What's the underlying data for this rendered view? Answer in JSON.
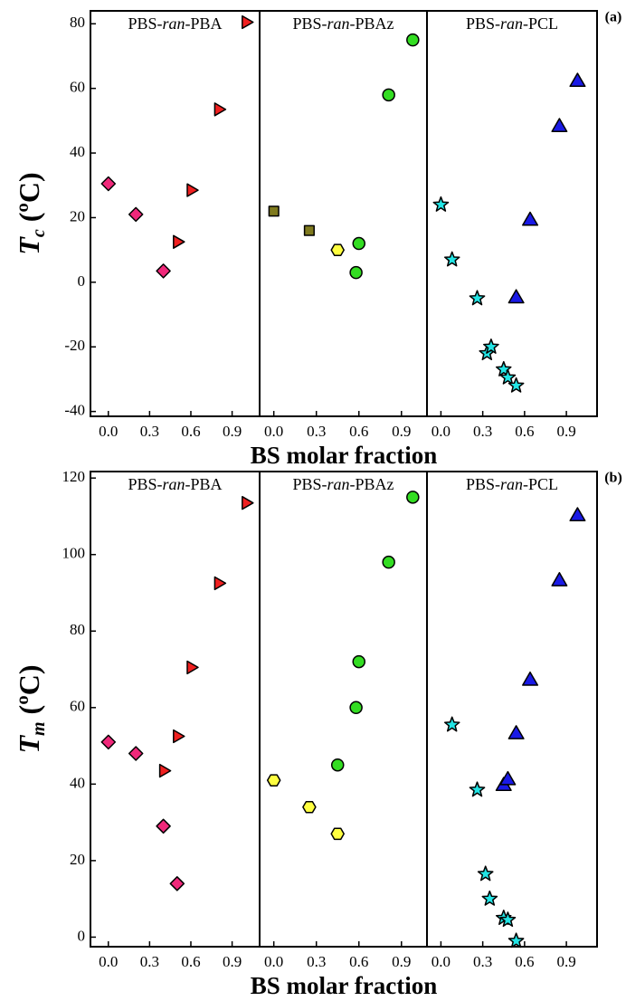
{
  "chart_data": [
    {
      "type": "scatter",
      "title": "PBS-ran-PBA",
      "ylabel": {
        "symbol": "T",
        "subscript": "c",
        "unit": "(ºC)"
      },
      "xlim": [
        -0.13,
        1.1
      ],
      "xticks": [
        {
          "value": 0,
          "label": "0.0"
        },
        0.3,
        0.6,
        0.9
      ],
      "ylim": [
        -41.5,
        84
      ],
      "yticks": [
        -40,
        -20,
        0,
        20,
        40,
        60,
        80
      ],
      "series": [
        {
          "marker": "diamond",
          "color": "#f0287a",
          "x": [
            0.0,
            0.2,
            0.4
          ],
          "values": [
            30.5,
            21,
            3.5
          ]
        },
        {
          "marker": "triangle-right",
          "color": "#f02020",
          "x": [
            0.5,
            0.6,
            0.8,
            1.0
          ],
          "values": [
            12.5,
            28.5,
            53.5,
            80.5
          ]
        }
      ]
    },
    {
      "type": "scatter",
      "title": "PBS-ran-PBAz",
      "xlabel": "BS molar fraction",
      "xlim": [
        -0.1,
        1.08
      ],
      "xticks": [
        {
          "value": 0,
          "label": "0.0"
        },
        0.3,
        0.6,
        0.9
      ],
      "ylim": [
        -41.5,
        84
      ],
      "series": [
        {
          "marker": "square",
          "color": "#7f7a1e",
          "x": [
            0.0,
            0.25
          ],
          "values": [
            22,
            16
          ]
        },
        {
          "marker": "hexagon",
          "color": "#ffff40",
          "x": [
            0.45
          ],
          "values": [
            10
          ]
        },
        {
          "marker": "circle",
          "color": "#33dd22",
          "x": [
            0.58,
            0.6,
            0.81,
            0.98
          ],
          "values": [
            3,
            12,
            58,
            75
          ]
        }
      ]
    },
    {
      "type": "scatter",
      "title": "PBS-ran-PCL",
      "panel_label": "(a)",
      "xlim": [
        -0.1,
        1.12
      ],
      "xticks": [
        {
          "value": 0,
          "label": "0.0"
        },
        0.3,
        0.6,
        0.9
      ],
      "ylim": [
        -41.5,
        84
      ],
      "series": [
        {
          "marker": "star",
          "color": "#22e5e5",
          "x": [
            0.0,
            0.08,
            0.26,
            0.33,
            0.36,
            0.45,
            0.48,
            0.54
          ],
          "values": [
            24,
            7,
            -5,
            -22,
            -20,
            -27,
            -29.5,
            -32
          ]
        },
        {
          "marker": "triangle-up",
          "color": "#1a1ae6",
          "x": [
            0.54,
            0.64,
            0.85,
            0.98
          ],
          "values": [
            -5,
            19,
            48,
            62
          ]
        }
      ]
    },
    {
      "type": "scatter",
      "title": "PBS-ran-PBA",
      "ylabel": {
        "symbol": "T",
        "subscript": "m",
        "unit": "(ºC)"
      },
      "xlim": [
        -0.13,
        1.1
      ],
      "xticks": [
        {
          "value": 0,
          "label": "0.0"
        },
        0.3,
        0.6,
        0.9
      ],
      "ylim": [
        -2.5,
        121.7
      ],
      "yticks": [
        0,
        20,
        40,
        60,
        80,
        100,
        120
      ],
      "series": [
        {
          "marker": "diamond",
          "color": "#f0287a",
          "x": [
            0.0,
            0.2,
            0.4,
            0.5
          ],
          "values": [
            51,
            48,
            29,
            14
          ]
        },
        {
          "marker": "triangle-right",
          "color": "#f02020",
          "x": [
            0.4,
            0.5,
            0.6,
            0.8,
            1.0
          ],
          "values": [
            43.5,
            52.5,
            70.5,
            92.5,
            113.5
          ]
        }
      ]
    },
    {
      "type": "scatter",
      "title": "PBS-ran-PBAz",
      "xlabel": "BS molar fraction",
      "xlim": [
        -0.1,
        1.08
      ],
      "xticks": [
        {
          "value": 0,
          "label": "0.0"
        },
        0.3,
        0.6,
        0.9
      ],
      "ylim": [
        -2.5,
        121.7
      ],
      "series": [
        {
          "marker": "hexagon",
          "color": "#ffff40",
          "x": [
            0.0,
            0.25,
            0.45
          ],
          "values": [
            41,
            34,
            27
          ]
        },
        {
          "marker": "circle",
          "color": "#33dd22",
          "x": [
            0.45,
            0.58,
            0.6,
            0.81,
            0.98
          ],
          "values": [
            45,
            60,
            72,
            98,
            115
          ]
        }
      ]
    },
    {
      "type": "scatter",
      "title": "PBS-ran-PCL",
      "panel_label": "(b)",
      "xlim": [
        -0.1,
        1.12
      ],
      "xticks": [
        {
          "value": 0,
          "label": "0.0"
        },
        0.3,
        0.6,
        0.9
      ],
      "ylim": [
        -2.5,
        121.7
      ],
      "series": [
        {
          "marker": "star",
          "color": "#22e5e5",
          "x": [
            0.08,
            0.26,
            0.32,
            0.35,
            0.45,
            0.48,
            0.54
          ],
          "values": [
            55.5,
            38.5,
            16.5,
            10,
            5,
            4.5,
            -1
          ]
        },
        {
          "marker": "triangle-up",
          "color": "#1a1ae6",
          "x": [
            0.45,
            0.48,
            0.54,
            0.64,
            0.85,
            0.98
          ],
          "values": [
            39.5,
            41,
            53,
            67,
            93,
            110
          ]
        }
      ]
    }
  ]
}
